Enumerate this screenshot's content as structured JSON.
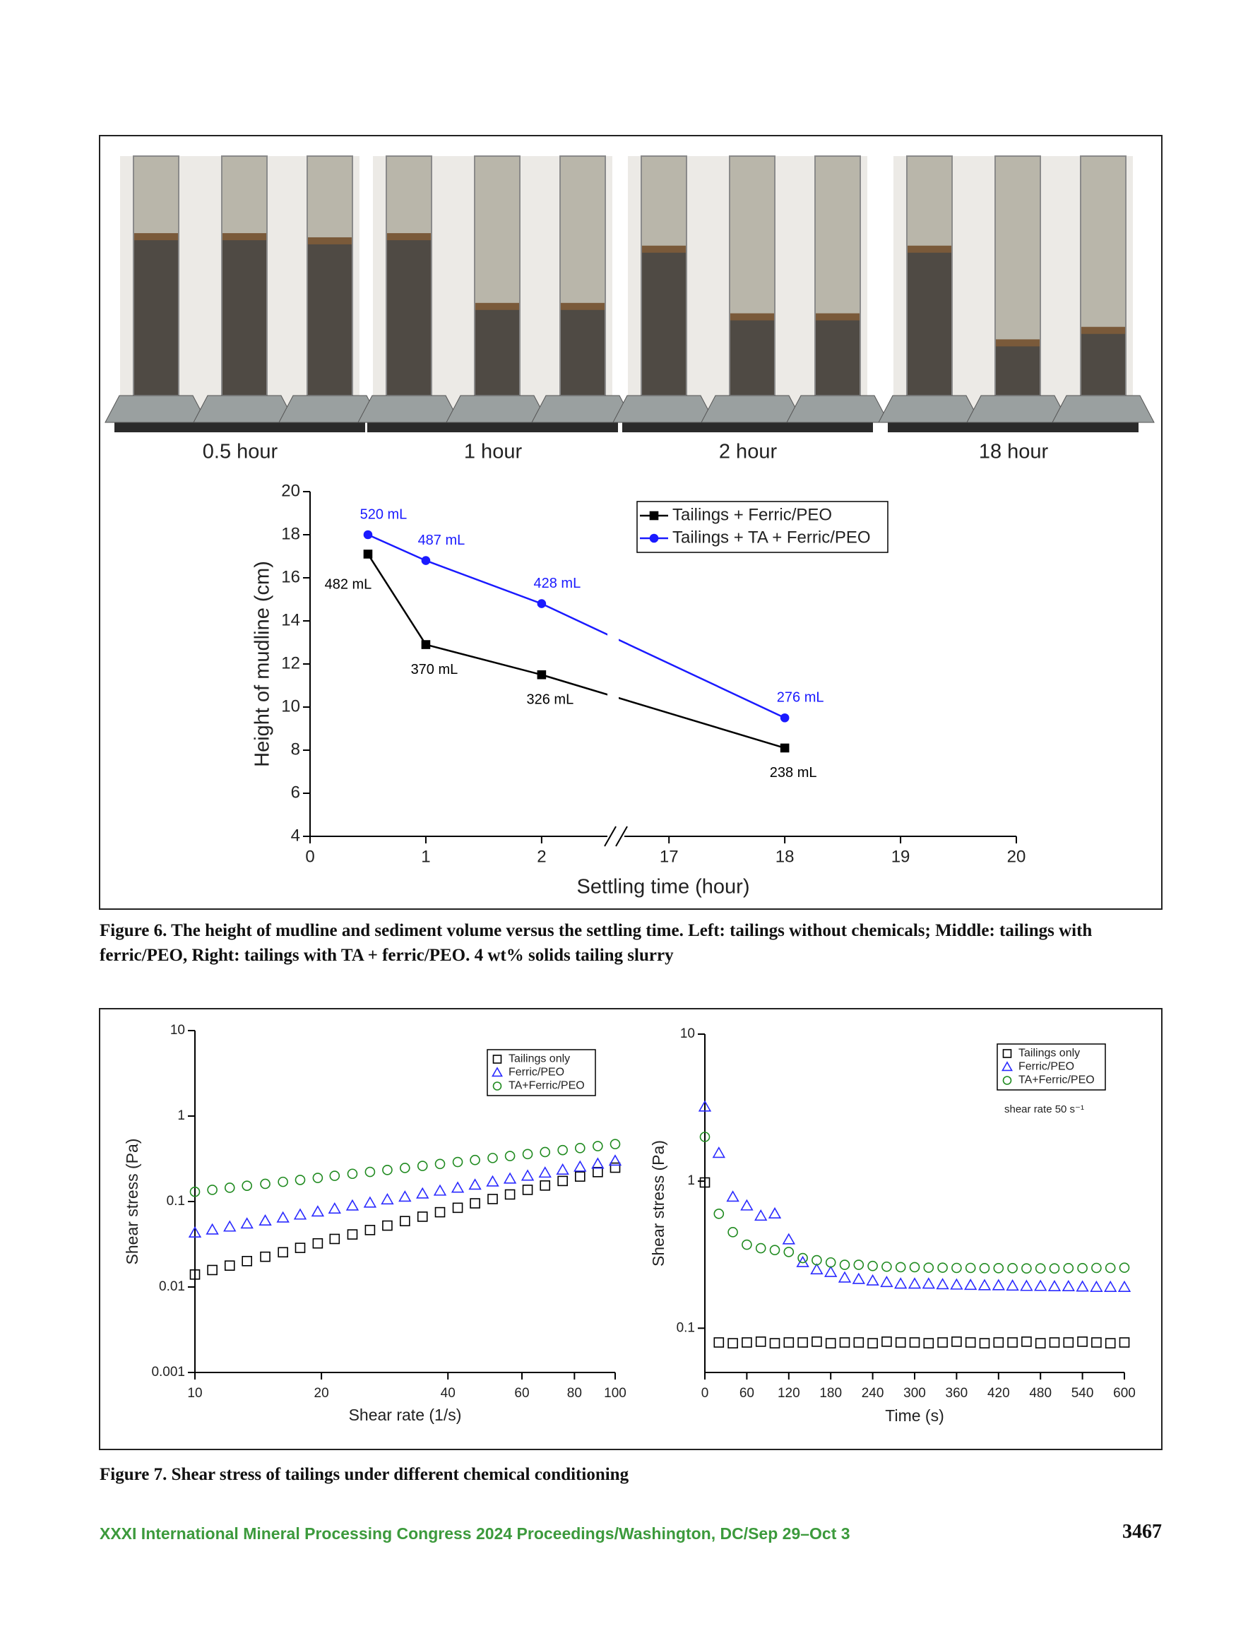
{
  "photo": {
    "labels": [
      "0.5 hour",
      "1 hour",
      "2 hour",
      "18 hour"
    ]
  },
  "chart_data": [
    {
      "type": "line",
      "xlabel": "Settling time (hour)",
      "ylabel": "Height of mudline (cm)",
      "x": [
        0.5,
        1,
        2,
        18
      ],
      "xlim": [
        0,
        20
      ],
      "xticks": [
        0,
        1,
        2,
        17,
        18,
        19,
        20
      ],
      "xbreak": [
        2,
        17
      ],
      "ylim": [
        4,
        20
      ],
      "yticks": [
        4,
        6,
        8,
        10,
        12,
        14,
        16,
        18,
        20
      ],
      "legend": "upper right",
      "series": [
        {
          "name": "Tailings + Ferric/PEO",
          "color": "#000000",
          "marker": "square",
          "filled": true,
          "values": [
            17.1,
            12.9,
            11.5,
            8.1
          ],
          "point_labels": [
            "482 mL",
            "370 mL",
            "326 mL",
            "238 mL"
          ]
        },
        {
          "name": "Tailings + TA + Ferric/PEO",
          "color": "#1a1aff",
          "marker": "circle",
          "filled": true,
          "values": [
            18.0,
            16.8,
            14.8,
            9.5
          ],
          "point_labels": [
            "520 mL",
            "487 mL",
            "428 mL",
            "276 mL"
          ]
        }
      ]
    },
    {
      "type": "scatter",
      "xlabel": "Shear rate (1/s)",
      "ylabel": "Shear stress (Pa)",
      "xscale": "log",
      "yscale": "log",
      "x": [
        10,
        11.0,
        12.1,
        13.3,
        14.7,
        16.2,
        17.8,
        19.6,
        21.5,
        23.7,
        26.1,
        28.7,
        31.6,
        34.8,
        38.3,
        42.2,
        46.4,
        51.1,
        56.2,
        61.9,
        68.1,
        75.0,
        82.5,
        90.9,
        100
      ],
      "xlim": [
        10,
        100
      ],
      "xticks": [
        10,
        20,
        40,
        60,
        80,
        100
      ],
      "ylim": [
        0.001,
        10
      ],
      "yticks": [
        0.001,
        0.01,
        0.1,
        1,
        10
      ],
      "legend": "upper right",
      "series": [
        {
          "name": "Tailings only",
          "color": "#000000",
          "marker": "square",
          "filled": false,
          "values": [
            0.014,
            0.0158,
            0.0178,
            0.0201,
            0.0226,
            0.0255,
            0.0287,
            0.0324,
            0.0365,
            0.0412,
            0.0464,
            0.0523,
            0.059,
            0.0665,
            0.075,
            0.0845,
            0.0953,
            0.107,
            0.121,
            0.137,
            0.154,
            0.174,
            0.196,
            0.221,
            0.249
          ]
        },
        {
          "name": "Ferric/PEO",
          "color": "#2a2aff",
          "marker": "triangle",
          "filled": false,
          "values": [
            0.043,
            0.0466,
            0.0505,
            0.0548,
            0.0594,
            0.0644,
            0.0698,
            0.0757,
            0.082,
            0.089,
            0.0964,
            0.105,
            0.113,
            0.123,
            0.133,
            0.144,
            0.156,
            0.17,
            0.184,
            0.199,
            0.216,
            0.234,
            0.254,
            0.275,
            0.298
          ]
        },
        {
          "name": "TA+Ferric/PEO",
          "color": "#1f8a1f",
          "marker": "circle",
          "filled": false,
          "values": [
            0.13,
            0.137,
            0.145,
            0.153,
            0.161,
            0.17,
            0.179,
            0.189,
            0.2,
            0.211,
            0.222,
            0.234,
            0.247,
            0.261,
            0.275,
            0.29,
            0.306,
            0.323,
            0.341,
            0.359,
            0.379,
            0.4,
            0.422,
            0.445,
            0.47
          ]
        }
      ]
    },
    {
      "type": "scatter",
      "xlabel": "Time (s)",
      "ylabel": "Shear stress (Pa)",
      "yscale": "log",
      "annotation": "shear rate 50 s⁻¹",
      "x": [
        0,
        20,
        40,
        60,
        80,
        100,
        120,
        140,
        160,
        180,
        200,
        220,
        240,
        260,
        280,
        300,
        320,
        340,
        360,
        380,
        400,
        420,
        440,
        460,
        480,
        500,
        520,
        540,
        560,
        580,
        600
      ],
      "xlim": [
        0,
        600
      ],
      "xticks": [
        0,
        60,
        120,
        180,
        240,
        300,
        360,
        420,
        480,
        540,
        600
      ],
      "ylim": [
        0.05,
        10
      ],
      "yticks": [
        0.1,
        1,
        10
      ],
      "legend": "upper right",
      "series": [
        {
          "name": "Tailings only",
          "color": "#000000",
          "marker": "square",
          "filled": false,
          "values": [
            0.98,
            0.08,
            0.079,
            0.08,
            0.081,
            0.079,
            0.08,
            0.08,
            0.081,
            0.079,
            0.08,
            0.08,
            0.079,
            0.081,
            0.08,
            0.08,
            0.079,
            0.08,
            0.081,
            0.08,
            0.079,
            0.08,
            0.08,
            0.081,
            0.079,
            0.08,
            0.08,
            0.081,
            0.08,
            0.079,
            0.08
          ]
        },
        {
          "name": "Ferric/PEO",
          "color": "#2a2aff",
          "marker": "triangle",
          "filled": false,
          "values": [
            3.2,
            1.55,
            0.78,
            0.68,
            0.58,
            0.6,
            0.4,
            0.28,
            0.25,
            0.24,
            0.22,
            0.215,
            0.21,
            0.205,
            0.2,
            0.2,
            0.2,
            0.198,
            0.197,
            0.196,
            0.195,
            0.195,
            0.194,
            0.193,
            0.193,
            0.192,
            0.192,
            0.191,
            0.19,
            0.19,
            0.19
          ]
        },
        {
          "name": "TA+Ferric/PEO",
          "color": "#1f8a1f",
          "marker": "circle",
          "filled": false,
          "values": [
            2.0,
            0.6,
            0.45,
            0.37,
            0.35,
            0.34,
            0.33,
            0.3,
            0.29,
            0.28,
            0.27,
            0.27,
            0.265,
            0.262,
            0.26,
            0.26,
            0.258,
            0.258,
            0.257,
            0.257,
            0.256,
            0.256,
            0.256,
            0.255,
            0.255,
            0.255,
            0.256,
            0.256,
            0.257,
            0.257,
            0.258
          ]
        }
      ]
    }
  ],
  "captions": {
    "figure6": "Figure 6. The height of mudline and sediment volume versus the settling time. Left: tailings without chemicals; Middle: tailings with ferric/PEO, Right: tailings with TA + ferric/PEO. 4 wt% solids tailing slurry",
    "figure7": "Figure 7. Shear stress of tailings under different chemical conditioning"
  },
  "footer": {
    "text": "XXXI International Mineral Processing Congress 2024 Proceedings/Washington, DC/Sep 29–Oct 3",
    "page": "3467"
  }
}
